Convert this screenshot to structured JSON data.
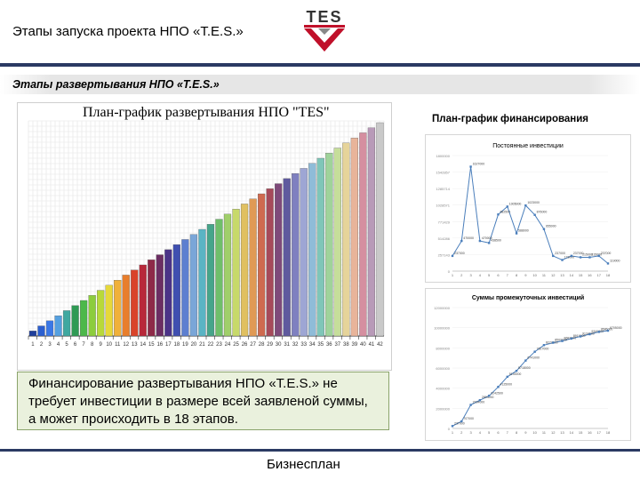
{
  "header": {
    "title": "Этапы запуска проекта НПО «T.E.S.»",
    "logo_text": "TES",
    "rule_color": "#2b3a63"
  },
  "subtitle": "Этапы развертывания НПО «T.E.S.»",
  "main_chart": {
    "title": "План-график развертывания НПО \"TES\"",
    "chart_data": {
      "type": "bar",
      "categories": [
        "1",
        "2",
        "3",
        "4",
        "5",
        "6",
        "7",
        "8",
        "9",
        "10",
        "11",
        "12",
        "13",
        "14",
        "15",
        "16",
        "17",
        "18",
        "19",
        "20",
        "21",
        "22",
        "23",
        "24",
        "25",
        "26",
        "27",
        "28",
        "29",
        "30",
        "31",
        "32",
        "33",
        "34",
        "35",
        "36",
        "37",
        "38",
        "39",
        "40",
        "41",
        "42"
      ],
      "values": [
        1,
        2,
        3,
        4,
        5,
        6,
        7,
        8,
        9,
        10,
        11,
        12,
        13,
        14,
        15,
        16,
        17,
        18,
        19,
        20,
        21,
        22,
        23,
        24,
        25,
        26,
        27,
        28,
        29,
        30,
        31,
        32,
        33,
        34,
        35,
        36,
        37,
        38,
        39,
        40,
        41,
        42
      ],
      "grid": true,
      "bar_colors": [
        "#1f3f9c",
        "#2b5fd0",
        "#3b78e6",
        "#55a0e0",
        "#3fa8a0",
        "#2f9a54",
        "#4cb84a",
        "#8ccd3c",
        "#b8d93a",
        "#e6d83a",
        "#f0b13a",
        "#e87e2c",
        "#d9432a",
        "#b8283a",
        "#8e2a48",
        "#6c2e63",
        "#4b3388",
        "#3f4fb0",
        "#5d7fd0",
        "#7aa6d8",
        "#5ab4c4",
        "#46a58a",
        "#6fbf6a",
        "#a0cf6a",
        "#c7d96a",
        "#e0c060",
        "#e09a55",
        "#cf6a4f",
        "#a64a5a",
        "#7f4a7a",
        "#5f5a9e",
        "#7f80c0",
        "#9ea6d4",
        "#8fbcd8",
        "#7fc6b8",
        "#9fd39a",
        "#c6de9a",
        "#e6d49a",
        "#e8b49a",
        "#d58fa0",
        "#b89ab8",
        "#c9c9c9"
      ]
    }
  },
  "financing": {
    "title": "План-график финансирования",
    "chart1": {
      "chart_data": {
        "type": "line",
        "title": "Постоянные инвестиции",
        "x": [
          "1",
          "2",
          "3",
          "4",
          "5",
          "6",
          "7",
          "8",
          "9",
          "10",
          "11",
          "12",
          "13",
          "14",
          "15",
          "16",
          "17",
          "18"
        ],
        "values": [
          237000,
          470000,
          1627000,
          470000,
          438500,
          882500,
          1005000,
          588000,
          1023000,
          876000,
          655000,
          237000,
          173000,
          237000,
          215000,
          215000,
          237000,
          119000
        ],
        "ylim": [
          0,
          1800000
        ],
        "series_color": "#4a7ebb"
      }
    },
    "chart2": {
      "chart_data": {
        "type": "line",
        "title": "Суммы промежуточных инвестиций",
        "x": [
          "1",
          "2",
          "3",
          "4",
          "5",
          "6",
          "7",
          "8",
          "9",
          "10",
          "11",
          "12",
          "13",
          "14",
          "15",
          "16",
          "17",
          "18"
        ],
        "values": [
          237000,
          707000,
          2334000,
          2804000,
          3242500,
          4125000,
          5130000,
          5718000,
          6741000,
          7617000,
          8272000,
          8509000,
          8682000,
          8919000,
          9134000,
          9349000,
          9586000,
          9705000
        ],
        "ylim": [
          0,
          12000000
        ],
        "series_color": "#4a7ebb"
      }
    }
  },
  "callout": {
    "text": "Финансирование развертывания НПО «T.E.S.» не требует инвестиции в размере всей заявленой суммы, а может происходить в 18 этапов."
  },
  "footer": "Бизнесплан"
}
